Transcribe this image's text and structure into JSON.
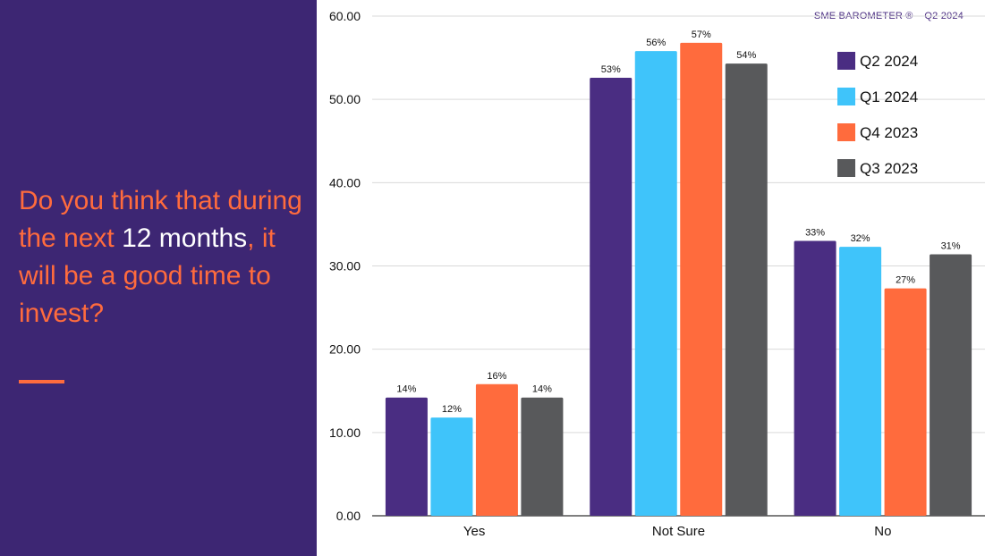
{
  "brand": "SME BAROMETER ® – Q2 2024",
  "question": {
    "part1": "Do you think that during the next ",
    "highlight1": "12 months",
    "part2": ", it will be a good time to invest?"
  },
  "chart_data": {
    "type": "bar",
    "categories": [
      "Yes",
      "Not Sure",
      "No"
    ],
    "series": [
      {
        "name": "Q2 2024",
        "color": "#4a2d82",
        "values": [
          14.2,
          52.6,
          33.0
        ],
        "labels": [
          "14%",
          "53%",
          "33%"
        ]
      },
      {
        "name": "Q1 2024",
        "color": "#3fc4fa",
        "values": [
          11.8,
          55.8,
          32.3
        ],
        "labels": [
          "12%",
          "56%",
          "32%"
        ]
      },
      {
        "name": "Q4 2023",
        "color": "#ff6b3d",
        "values": [
          15.8,
          56.8,
          27.3
        ],
        "labels": [
          "16%",
          "57%",
          "27%"
        ]
      },
      {
        "name": "Q3 2023",
        "color": "#58595b",
        "values": [
          14.2,
          54.3,
          31.4
        ],
        "labels": [
          "14%",
          "54%",
          "31%"
        ]
      }
    ],
    "yticks": [
      "0.00",
      "10.00",
      "20.00",
      "30.00",
      "40.00",
      "50.00",
      "60.00"
    ],
    "ylim": [
      0,
      60
    ],
    "grid": true,
    "legend_position": "top-right"
  }
}
